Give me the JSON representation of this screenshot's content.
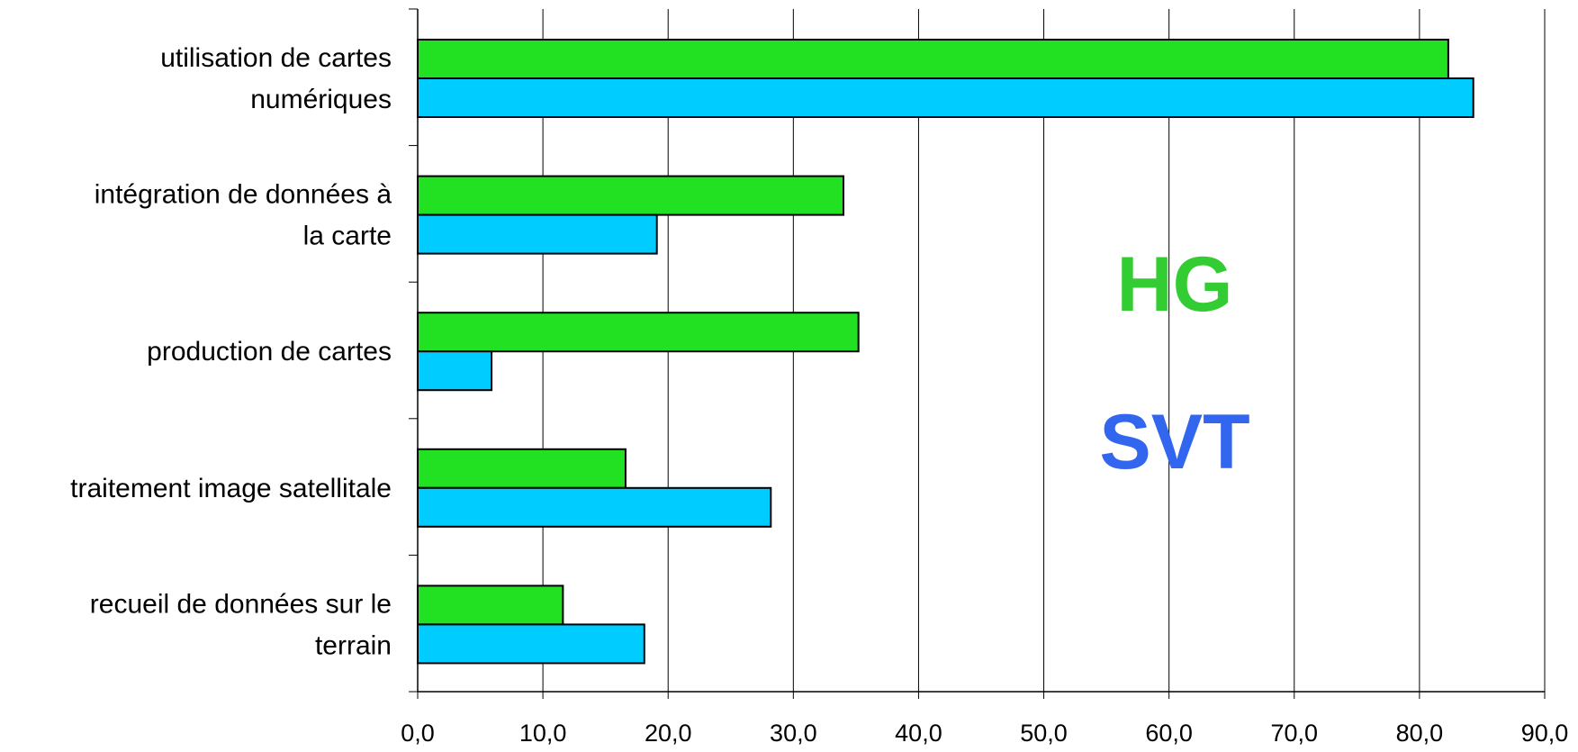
{
  "chart_data": {
    "type": "bar",
    "orientation": "horizontal",
    "title": "",
    "xlabel": "",
    "ylabel": "",
    "categories": [
      [
        "utilisation de cartes",
        "numériques"
      ],
      [
        "intégration de données à",
        "la carte"
      ],
      [
        "production de cartes"
      ],
      [
        "traitement image satellitale"
      ],
      [
        "recueil de données sur le",
        "terrain"
      ]
    ],
    "series": [
      {
        "name": "HG",
        "color": "#22e022",
        "values": [
          82.3,
          34.0,
          35.2,
          16.6,
          11.6
        ]
      },
      {
        "name": "SVT",
        "color": "#00ccff",
        "values": [
          84.3,
          19.1,
          5.9,
          28.2,
          18.1
        ]
      }
    ],
    "xlim": [
      0,
      90
    ],
    "xticks": [
      "0,0",
      "10,0",
      "20,0",
      "30,0",
      "40,0",
      "50,0",
      "60,0",
      "70,0",
      "80,0",
      "90,0"
    ],
    "grid": true,
    "series_labels": [
      {
        "text": "HG",
        "color": "#33cc33"
      },
      {
        "text": "SVT",
        "color": "#3366ee"
      }
    ]
  }
}
